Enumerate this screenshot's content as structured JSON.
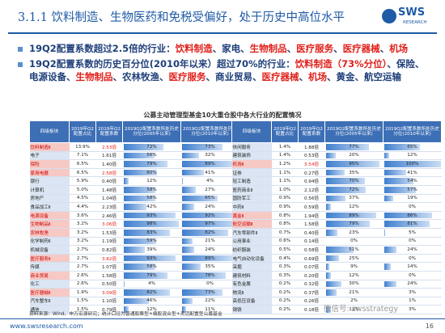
{
  "header": {
    "title": "3.1.1 饮料制造、生物医药和免税受偏好，处于历史中高位水平",
    "logo": "SWS",
    "logo_sub": "RESEARCH"
  },
  "bullets": [
    [
      {
        "text": "19Q2配置系数超过2.5倍的行业：",
        "color": "#1f3f7a"
      },
      {
        "text": "饮料制造",
        "color": "#e0201b"
      },
      {
        "text": "、",
        "color": "#1f3f7a"
      },
      {
        "text": "家电",
        "color": "#1f3f7a"
      },
      {
        "text": "、",
        "color": "#1f3f7a"
      },
      {
        "text": "生物制品",
        "color": "#e0201b"
      },
      {
        "text": "、",
        "color": "#1f3f7a"
      },
      {
        "text": "医疗服务",
        "color": "#e0201b"
      },
      {
        "text": "、",
        "color": "#1f3f7a"
      },
      {
        "text": "医疗器械",
        "color": "#e0201b"
      },
      {
        "text": "、",
        "color": "#1f3f7a"
      },
      {
        "text": "机场",
        "color": "#e0201b"
      }
    ],
    [
      {
        "text": "19Q2配置系数的历史百分位(2010年以来）超过70%的行业：",
        "color": "#1f3f7a"
      },
      {
        "text": "饮料制造（73%分位）",
        "color": "#e0201b"
      },
      {
        "text": "、保险、电源设备、",
        "color": "#1f3f7a"
      },
      {
        "text": "生物制品",
        "color": "#e0201b"
      },
      {
        "text": "、农林牧渔、",
        "color": "#1f3f7a"
      },
      {
        "text": "医疗服务",
        "color": "#e0201b"
      },
      {
        "text": "、商业贸易、",
        "color": "#1f3f7a"
      },
      {
        "text": "医疗器械",
        "color": "#e0201b"
      },
      {
        "text": "、",
        "color": "#1f3f7a"
      },
      {
        "text": "机场",
        "color": "#e0201b"
      },
      {
        "text": "、黄金、航空运输",
        "color": "#1f3f7a"
      }
    ]
  ],
  "table": {
    "title": "公募主动管理型基金10大重仓股中各大行业的配置情况",
    "columns": [
      "四级板块",
      "2019年Q2配置占比",
      "2019年Q2配置系数",
      "2019Q2配置系数所处历史分位(2005年以来)",
      "2019Q2配置系数所处历史分位(2010年以来)"
    ],
    "left_rows": [
      [
        "饮料制造Ⅱ",
        "13.9%",
        "2.53倍",
        "72%",
        "73%"
      ],
      [
        "电子",
        "7.1%",
        "1.61倍",
        "56%",
        "32%"
      ],
      [
        "保险",
        "6.5%",
        "1.40倍",
        "79%",
        "89%"
      ],
      [
        "家用电器",
        "6.5%",
        "2.58倍",
        "60%",
        "41%"
      ],
      [
        "银行",
        "5.9%",
        "0.40倍",
        "12%",
        "4%"
      ],
      [
        "计算机",
        "5.0%",
        "1.48倍",
        "58%",
        "27%"
      ],
      [
        "房地产",
        "4.5%",
        "1.04倍",
        "58%",
        "65%"
      ],
      [
        "食品加工Ⅱ",
        "4.4%",
        "2.23倍",
        "42%",
        "24%"
      ],
      [
        "电源设备",
        "3.6%",
        "2.46倍",
        "93%",
        "92%"
      ],
      [
        "生物制品Ⅱ",
        "3.2%",
        "3.06倍",
        "98%",
        "97%"
      ],
      [
        "农林牧渔",
        "3.2%",
        "1.53倍",
        "83%",
        "82%"
      ],
      [
        "化学制药Ⅱ",
        "3.2%",
        "1.19倍",
        "59%",
        "21%"
      ],
      [
        "机械设备",
        "2.7%",
        "0.82倍",
        "39%",
        "24%"
      ],
      [
        "医疗服务Ⅱ",
        "2.7%",
        "3.82倍",
        "93%",
        "89%"
      ],
      [
        "传媒",
        "2.7%",
        "1.07倍",
        "58%",
        "35%"
      ],
      [
        "商业贸易",
        "2.6%",
        "1.58倍",
        "79%",
        "78%"
      ],
      [
        "化工",
        "2.6%",
        "0.50倍",
        "4%",
        "0%"
      ],
      [
        "医疗器械Ⅱ",
        "1.9%",
        "3.09倍",
        "82%",
        "73%"
      ],
      [
        "汽车整车Ⅱ",
        "1.5%",
        "1.10倍",
        "46%",
        "22%"
      ],
      [
        "通信",
        "1.5%",
        "0.79倍",
        "12%",
        "11%"
      ]
    ],
    "right_rows": [
      [
        "休闲服务",
        "1.4%",
        "1.88倍",
        "77%",
        "65%"
      ],
      [
        "建筑装饰",
        "1.4%",
        "0.53倍",
        "20%",
        "12%"
      ],
      [
        "机场Ⅱ",
        "1.2%",
        "3.54倍",
        "95%",
        "100%"
      ],
      [
        "证券",
        "1.1%",
        "0.27倍",
        "35%",
        "41%"
      ],
      [
        "轻工制造",
        "1.1%",
        "0.94倍",
        "70%",
        "54%"
      ],
      [
        "医药商业Ⅱ",
        "1.0%",
        "2.12倍",
        "72%",
        "57%"
      ],
      [
        "国防军工",
        "0.9%",
        "0.56倍",
        "37%",
        "19%"
      ],
      [
        "中药Ⅱ",
        "0.9%",
        "0.59倍",
        "12%",
        "0%"
      ],
      [
        "黄金Ⅱ",
        "0.8%",
        "1.94倍",
        "89%",
        "86%"
      ],
      [
        "航空运输Ⅱ",
        "0.8%",
        "1.58倍",
        "79%",
        "81%"
      ],
      [
        "汽车零部件Ⅱ",
        "0.7%",
        "0.40倍",
        "23%",
        "5%"
      ],
      [
        "公用事业",
        "0.6%",
        "0.14倍",
        "0%",
        "0%"
      ],
      [
        "纺织服装",
        "0.5%",
        "0.58倍",
        "51%",
        "24%"
      ],
      [
        "电气自动化设备",
        "0.4%",
        "0.69倍",
        "25%",
        "0%"
      ],
      [
        "采掘",
        "0.3%",
        "0.07倍",
        "9%",
        "14%"
      ],
      [
        "建筑材料",
        "0.3%",
        "0.20倍",
        "12%",
        "0%"
      ],
      [
        "有色金属",
        "0.2%",
        "0.32倍",
        "30%",
        "24%"
      ],
      [
        "物流Ⅱ",
        "0.2%",
        "0.37倍",
        "21%",
        "3%"
      ],
      [
        "高低压设备",
        "0.2%",
        "0.26倍",
        "2%",
        "1%"
      ],
      [
        "钢铁",
        "0.2%",
        "0.18倍",
        "12%",
        "3%"
      ]
    ]
  },
  "source": "资料来源：Wind、申万宏源研究；统计口径为普通股票型+偏股混合型+灵活配置型公募基金",
  "footer": {
    "url": "www.swsresearch.com",
    "page": "16",
    "watermark": "微信号: swsstrategy"
  }
}
